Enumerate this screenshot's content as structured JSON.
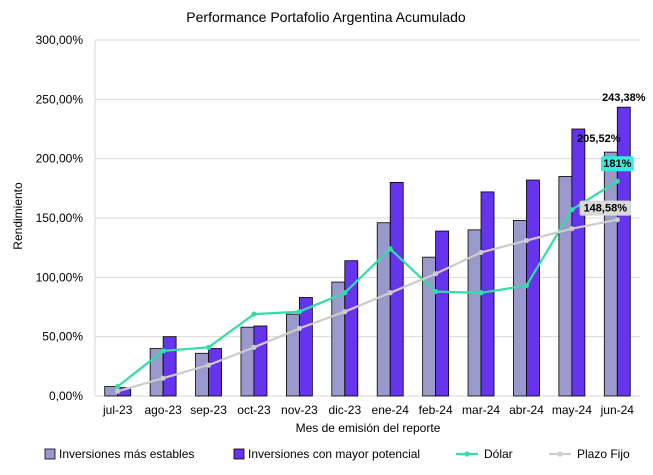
{
  "chart_data": {
    "type": "bar",
    "title": "Performance Portafolio Argentina Acumulado",
    "xlabel": "Mes de emisión del reporte",
    "ylabel": "Rendimiento",
    "ylim": [
      0,
      300
    ],
    "y_ticks": [
      "0,00%",
      "50,00%",
      "100,00%",
      "150,00%",
      "200,00%",
      "250,00%",
      "300,00%"
    ],
    "categories": [
      "jul-23",
      "ago-23",
      "sep-23",
      "oct-23",
      "nov-23",
      "dic-23",
      "ene-24",
      "feb-24",
      "mar-24",
      "abr-24",
      "may-24",
      "jun-24"
    ],
    "grid": true,
    "legend_position": "bottom",
    "series": [
      {
        "name": "Inversiones más estables",
        "kind": "bar",
        "color": "#9999cc",
        "values": [
          8,
          40,
          36,
          58,
          69,
          96,
          146,
          117,
          140,
          148,
          185,
          205.52
        ]
      },
      {
        "name": "Inversiones con mayor potencial",
        "kind": "bar",
        "color": "#6633ee",
        "values": [
          7,
          50,
          40,
          59,
          83,
          114,
          180,
          139,
          172,
          182,
          225,
          243.38
        ]
      },
      {
        "name": "Dólar",
        "kind": "line",
        "color": "#33ddaa",
        "values": [
          8,
          38,
          41,
          69,
          71,
          87,
          124,
          88,
          87,
          93,
          157,
          181
        ]
      },
      {
        "name": "Plazo Fijo",
        "kind": "line",
        "color": "#cccccc",
        "values": [
          4,
          15,
          26,
          41,
          57,
          71,
          87,
          103,
          121,
          131,
          141,
          148.58
        ]
      }
    ],
    "data_labels": [
      {
        "series": 1,
        "index": 11,
        "text": "243,38%"
      },
      {
        "series": 0,
        "index": 11,
        "text": "205,52%"
      },
      {
        "series": 2,
        "index": 11,
        "text": "181%"
      },
      {
        "series": 3,
        "index": 11,
        "text": "148,58%"
      }
    ]
  }
}
